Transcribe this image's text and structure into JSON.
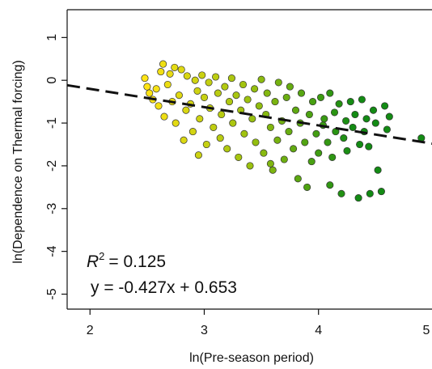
{
  "chart_data": {
    "type": "scatter",
    "xlabel": "ln(Pre-season period)",
    "ylabel": "ln(Dependence on Thermal forcing)",
    "xlim": [
      1.8,
      5.05
    ],
    "ylim": [
      -5.35,
      1.65
    ],
    "x_ticks": [
      2,
      3,
      4,
      5
    ],
    "y_ticks": [
      1,
      0,
      -1,
      -2,
      -3,
      -4,
      -5
    ],
    "grid": false,
    "legend": "none",
    "color_scale": {
      "low": "#ffe414",
      "mid": "#9bc10f",
      "high": "#138b14",
      "by": "x"
    },
    "fit_line": {
      "slope": -0.427,
      "intercept": 0.653,
      "style": "dashed",
      "color": "#111111"
    },
    "annotations": {
      "r2_label": "R",
      "r2_sup": "2",
      "r2_value": "= 0.125",
      "equation": "y = -0.427x + 0.653"
    },
    "points": [
      [
        2.48,
        0.05
      ],
      [
        2.5,
        -0.15
      ],
      [
        2.52,
        -0.3
      ],
      [
        2.55,
        -0.45
      ],
      [
        2.58,
        -0.2
      ],
      [
        2.6,
        -0.6
      ],
      [
        2.62,
        0.2
      ],
      [
        2.64,
        0.38
      ],
      [
        2.65,
        -0.85
      ],
      [
        2.68,
        -0.1
      ],
      [
        2.7,
        0.15
      ],
      [
        2.72,
        -0.5
      ],
      [
        2.74,
        0.3
      ],
      [
        2.75,
        -1.0
      ],
      [
        2.78,
        -0.35
      ],
      [
        2.8,
        0.25
      ],
      [
        2.82,
        -1.4
      ],
      [
        2.84,
        -0.7
      ],
      [
        2.85,
        0.1
      ],
      [
        2.88,
        -0.55
      ],
      [
        2.9,
        -1.2
      ],
      [
        2.92,
        0.0
      ],
      [
        2.94,
        -0.25
      ],
      [
        2.95,
        -1.75
      ],
      [
        2.96,
        -0.9
      ],
      [
        2.98,
        0.12
      ],
      [
        3.0,
        -0.4
      ],
      [
        3.02,
        -1.5
      ],
      [
        3.04,
        -0.05
      ],
      [
        3.05,
        -0.65
      ],
      [
        3.08,
        -1.1
      ],
      [
        3.1,
        0.08
      ],
      [
        3.12,
        -0.3
      ],
      [
        3.14,
        -1.35
      ],
      [
        3.15,
        -0.8
      ],
      [
        3.18,
        -0.15
      ],
      [
        3.2,
        -1.6
      ],
      [
        3.22,
        -0.5
      ],
      [
        3.24,
        0.05
      ],
      [
        3.25,
        -1.0
      ],
      [
        3.28,
        -0.35
      ],
      [
        3.3,
        -1.8
      ],
      [
        3.32,
        -0.7
      ],
      [
        3.34,
        -0.1
      ],
      [
        3.35,
        -1.25
      ],
      [
        3.38,
        -0.45
      ],
      [
        3.4,
        -2.0
      ],
      [
        3.42,
        -0.9
      ],
      [
        3.44,
        -0.2
      ],
      [
        3.45,
        -1.45
      ],
      [
        3.48,
        -0.6
      ],
      [
        3.5,
        0.02
      ],
      [
        3.52,
        -1.7
      ],
      [
        3.54,
        -0.8
      ],
      [
        3.55,
        -0.3
      ],
      [
        3.58,
        -1.1
      ],
      [
        3.6,
        -2.1
      ],
      [
        3.62,
        -0.5
      ],
      [
        3.64,
        -1.4
      ],
      [
        3.65,
        -0.05
      ],
      [
        3.68,
        -0.95
      ],
      [
        3.7,
        -1.85
      ],
      [
        3.72,
        -0.4
      ],
      [
        3.74,
        -1.2
      ],
      [
        3.75,
        -0.15
      ],
      [
        3.78,
        -1.6
      ],
      [
        3.8,
        -0.7
      ],
      [
        3.82,
        -2.3
      ],
      [
        3.84,
        -1.0
      ],
      [
        3.85,
        -0.3
      ],
      [
        3.88,
        -1.45
      ],
      [
        3.9,
        -2.5
      ],
      [
        3.92,
        -0.8
      ],
      [
        3.94,
        -1.9
      ],
      [
        3.95,
        -0.5
      ],
      [
        3.98,
        -1.25
      ],
      [
        4.0,
        -1.7
      ],
      [
        4.02,
        -0.4
      ],
      [
        4.04,
        -1.05
      ],
      [
        4.05,
        -0.9
      ],
      [
        4.08,
        -1.45
      ],
      [
        4.1,
        -0.3
      ],
      [
        4.12,
        -1.8
      ],
      [
        4.14,
        -0.75
      ],
      [
        4.15,
        -1.2
      ],
      [
        4.18,
        -0.55
      ],
      [
        4.2,
        -2.65
      ],
      [
        4.22,
        -1.35
      ],
      [
        4.24,
        -0.95
      ],
      [
        4.25,
        -1.65
      ],
      [
        4.28,
        -0.5
      ],
      [
        4.3,
        -1.1
      ],
      [
        4.32,
        -0.8
      ],
      [
        4.35,
        -2.75
      ],
      [
        4.36,
        -1.5
      ],
      [
        4.38,
        -0.45
      ],
      [
        4.4,
        -1.2
      ],
      [
        4.42,
        -0.9
      ],
      [
        4.44,
        -1.55
      ],
      [
        4.45,
        -2.65
      ],
      [
        4.48,
        -0.7
      ],
      [
        4.5,
        -1.0
      ],
      [
        4.52,
        -2.1
      ],
      [
        4.55,
        -2.6
      ],
      [
        4.58,
        -0.6
      ],
      [
        4.6,
        -1.15
      ],
      [
        4.62,
        -0.85
      ],
      [
        4.9,
        -1.35
      ],
      [
        4.1,
        -2.45
      ],
      [
        3.58,
        -1.95
      ]
    ]
  }
}
